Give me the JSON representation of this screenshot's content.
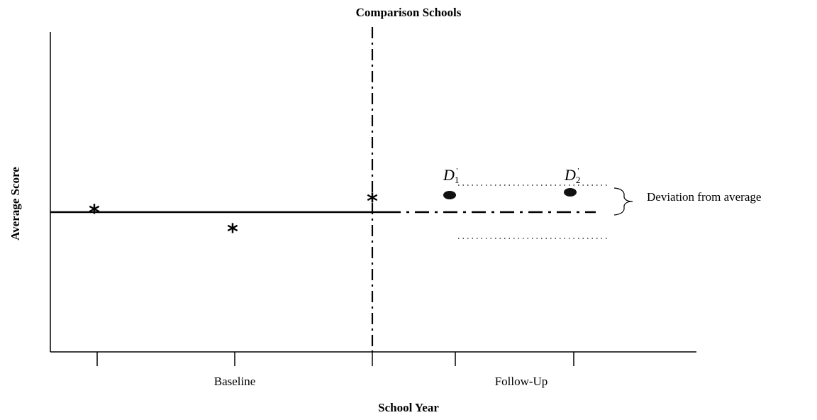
{
  "title": "Comparison Schools",
  "x_axis_label": "School Year",
  "y_axis_label": "Average Score",
  "periods": [
    "Baseline",
    "Follow-Up"
  ],
  "annotation": "Deviation from average",
  "deviation_labels": [
    {
      "letter": "D",
      "subscript": "1",
      "superscript": "'"
    },
    {
      "letter": "D",
      "subscript": "2",
      "superscript": "'"
    }
  ],
  "legend_markers": {
    "baseline_point": "asterisk-icon",
    "followup_point": "filled-ellipse-icon"
  }
}
